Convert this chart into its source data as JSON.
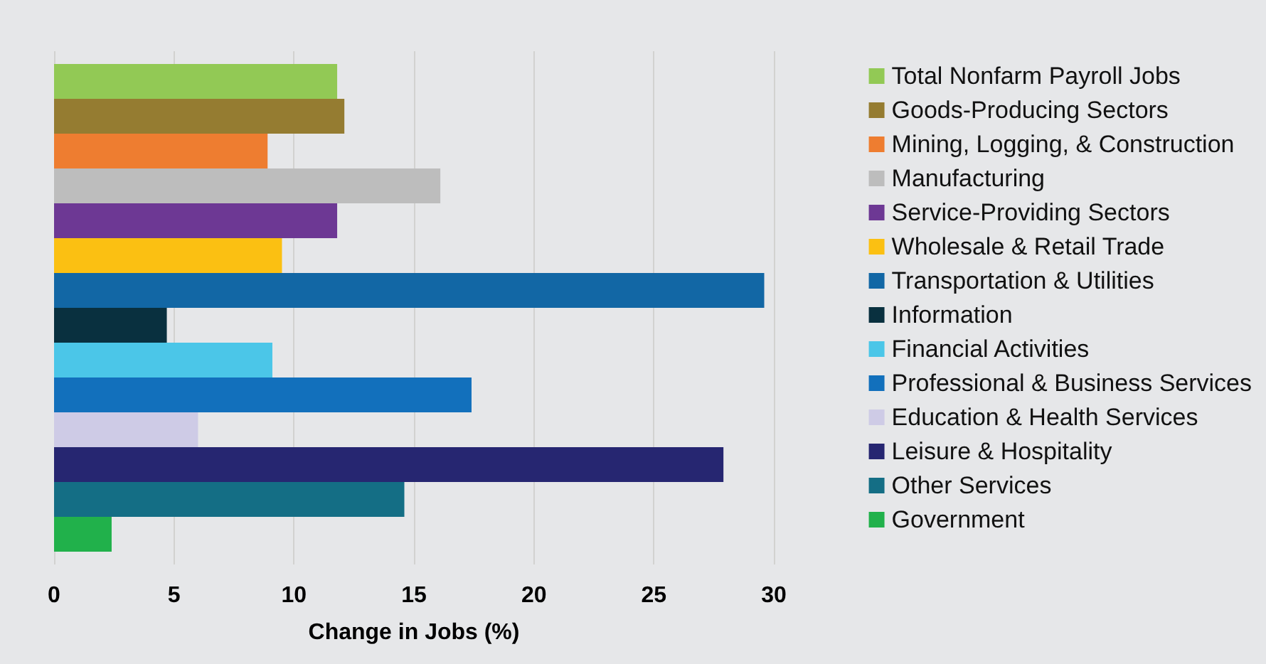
{
  "chart_data": {
    "type": "bar",
    "orientation": "horizontal",
    "categories": [
      null
    ],
    "xlabel": "Change in Jobs (%)",
    "xlim": [
      0,
      30
    ],
    "xticks": [
      0,
      5,
      10,
      15,
      20,
      25,
      30
    ],
    "grid": "x",
    "legend": "right",
    "series": [
      {
        "name": "Total Nonfarm Payroll Jobs",
        "color": "#92c955",
        "values": [
          11.8
        ]
      },
      {
        "name": "Goods-Producing Sectors",
        "color": "#957c31",
        "values": [
          12.1
        ]
      },
      {
        "name": "Mining, Logging, & Construction",
        "color": "#ee7d30",
        "values": [
          8.9
        ]
      },
      {
        "name": "Manufacturing",
        "color": "#bdbdbd",
        "values": [
          16.1
        ]
      },
      {
        "name": "Service-Providing Sectors",
        "color": "#6d3894",
        "values": [
          11.8
        ]
      },
      {
        "name": "Wholesale & Retail Trade",
        "color": "#fbc012",
        "values": [
          9.5
        ]
      },
      {
        "name": "Transportation & Utilities",
        "color": "#1267a5",
        "values": [
          29.6
        ]
      },
      {
        "name": "Information",
        "color": "#09303f",
        "values": [
          4.7
        ]
      },
      {
        "name": "Financial Activities",
        "color": "#4bc6e8",
        "values": [
          9.1
        ]
      },
      {
        "name": "Professional & Business Services",
        "color": "#1270bc",
        "values": [
          17.4
        ]
      },
      {
        "name": "Education & Health Services",
        "color": "#cecbe6",
        "values": [
          6.0
        ]
      },
      {
        "name": "Leisure & Hospitality",
        "color": "#262671",
        "values": [
          27.9
        ]
      },
      {
        "name": "Other Services",
        "color": "#146e85",
        "values": [
          14.6
        ]
      },
      {
        "name": "Government",
        "color": "#21b14b",
        "values": [
          2.4
        ]
      }
    ]
  }
}
